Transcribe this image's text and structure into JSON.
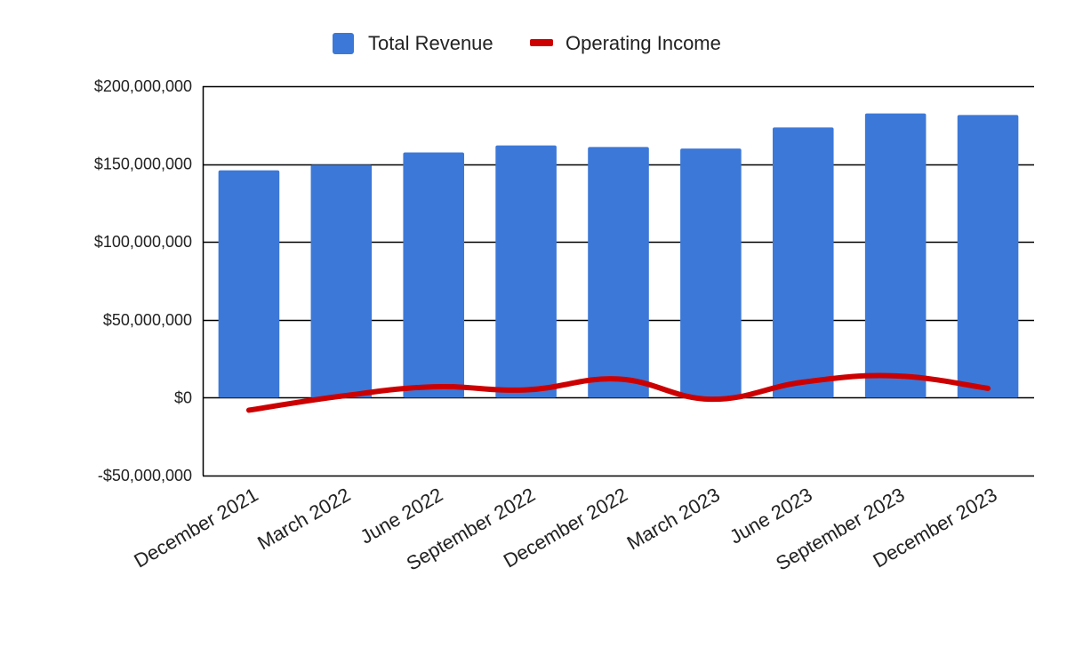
{
  "chart_data": {
    "type": "bar",
    "categories": [
      "December 2021",
      "March 2022",
      "June 2022",
      "September 2022",
      "December 2022",
      "March 2023",
      "June 2023",
      "September 2023",
      "December 2023"
    ],
    "series": [
      {
        "name": "Total Revenue",
        "type": "bar",
        "color": "#3c78d8",
        "values": [
          146000000,
          149500000,
          157500000,
          162000000,
          161000000,
          160000000,
          173500000,
          182500000,
          181500000
        ]
      },
      {
        "name": "Operating Income",
        "type": "line",
        "color": "#cc0000",
        "values": [
          -8000000,
          1000000,
          7000000,
          5000000,
          12000000,
          -1000000,
          10000000,
          14000000,
          6000000
        ]
      }
    ],
    "ylim": [
      -50000000,
      200000000
    ],
    "yticks": [
      200000000,
      150000000,
      100000000,
      50000000,
      0,
      -50000000
    ],
    "ytick_labels": [
      "$200,000,000",
      "$150,000,000",
      "$100,000,000",
      "$50,000,000",
      "$0",
      "-$50,000,000"
    ],
    "grid": true,
    "legend_position": "top-center",
    "title": "",
    "xlabel": "",
    "ylabel": ""
  }
}
